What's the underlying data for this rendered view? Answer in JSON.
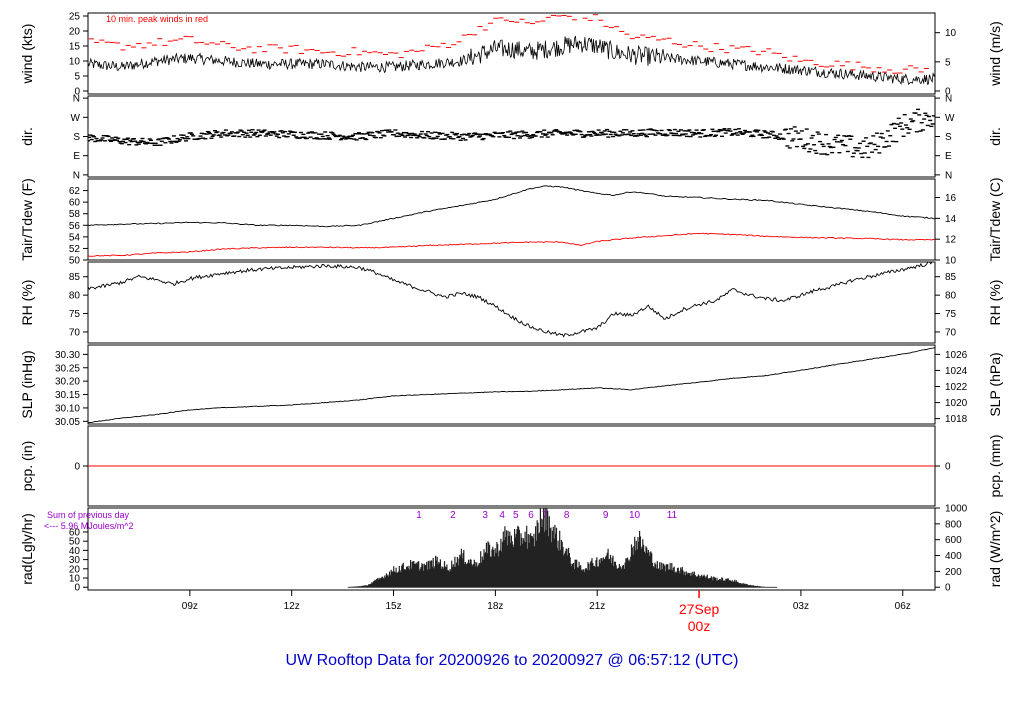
{
  "title": "UW Rooftop Data for 20200926  to  20200927 @ 06:57:12  (UTC)",
  "colors": {
    "title": "#0000cc",
    "peak": "#ff0000",
    "tdew": "#ff0000",
    "precip": "#ff0000",
    "rad_note": "#9900cc",
    "date_label": "#ff0000",
    "line": "#000000"
  },
  "x_axis": {
    "range_hours": [
      6.0,
      30.95
    ],
    "ticks": [
      {
        "hour": 9,
        "label": "09z"
      },
      {
        "hour": 12,
        "label": "12z"
      },
      {
        "hour": 15,
        "label": "15z"
      },
      {
        "hour": 18,
        "label": "18z"
      },
      {
        "hour": 21,
        "label": "21z"
      },
      {
        "hour": 27,
        "label": "03z"
      },
      {
        "hour": 30,
        "label": "06z"
      }
    ],
    "date_label": {
      "hour": 24,
      "date": "27Sep",
      "time": "00z"
    }
  },
  "chart_data": [
    {
      "type": "line",
      "name": "wind",
      "ylabel_left": "wind (kts)",
      "ylabel_right": "wind (m/s)",
      "ylim": [
        -1,
        26
      ],
      "left_ticks": [
        0,
        5,
        10,
        15,
        20,
        25
      ],
      "right_ticks": [
        {
          "v": 0,
          "label": "0"
        },
        {
          "v": 9.72,
          "label": "5"
        },
        {
          "v": 19.44,
          "label": "10"
        }
      ],
      "annotation": "10 min. peak winds in red",
      "x": [
        6,
        7,
        8,
        9,
        10,
        11,
        12,
        13,
        14,
        15,
        16,
        17,
        17.5,
        18,
        18.5,
        19,
        19.5,
        20,
        20.5,
        21,
        21.5,
        22,
        23,
        24,
        25,
        26,
        27,
        28,
        29,
        30,
        30.5,
        30.95
      ],
      "y": [
        9,
        8,
        10,
        11,
        10,
        9,
        9,
        9,
        8,
        8,
        9,
        10,
        12,
        14,
        14,
        13,
        14,
        15,
        16,
        15,
        13,
        12,
        11,
        10,
        9,
        8,
        7,
        6,
        5,
        4,
        4,
        4
      ],
      "peak_x": [
        6.2,
        7,
        8,
        9,
        10,
        11,
        12,
        13,
        14,
        15,
        16,
        17,
        17.5,
        18,
        18.5,
        19,
        19.5,
        20,
        20.5,
        21,
        21.5,
        22,
        23,
        24,
        25,
        26,
        27,
        28,
        29,
        30,
        30.6
      ],
      "peak_y": [
        16,
        15,
        16,
        17,
        15,
        14,
        14,
        13,
        13,
        12,
        14,
        17,
        21,
        23,
        24,
        22,
        24,
        25,
        25,
        24,
        21,
        18,
        17,
        15,
        14,
        13,
        10,
        9,
        8,
        7,
        7
      ]
    },
    {
      "type": "scatter",
      "name": "direction",
      "ylabel_left": "dir.",
      "ylabel_right": "dir.",
      "ylim": [
        -10,
        370
      ],
      "left_ticks": [
        {
          "v": 360,
          "label": "N"
        },
        {
          "v": 270,
          "label": "W"
        },
        {
          "v": 180,
          "label": "S"
        },
        {
          "v": 90,
          "label": "E"
        },
        {
          "v": 0,
          "label": "N"
        }
      ],
      "right_ticks": [
        {
          "v": 360,
          "label": "N"
        },
        {
          "v": 270,
          "label": "W"
        },
        {
          "v": 180,
          "label": "S"
        },
        {
          "v": 90,
          "label": "E"
        },
        {
          "v": 0,
          "label": "N"
        }
      ],
      "x": [
        6,
        7,
        8,
        9,
        10,
        11,
        12,
        13,
        14,
        15,
        16,
        17,
        18,
        19,
        20,
        21,
        22,
        23,
        24,
        25,
        26,
        27,
        28,
        29,
        30,
        30.95
      ],
      "y": [
        175,
        160,
        150,
        180,
        195,
        195,
        190,
        185,
        180,
        195,
        185,
        180,
        185,
        190,
        195,
        195,
        195,
        200,
        195,
        200,
        190,
        170,
        140,
        120,
        230,
        280
      ]
    },
    {
      "type": "line",
      "name": "temperature",
      "ylabel_left": "Tair/Tdew (F)",
      "ylabel_right": "Tair/Tdew (C)",
      "ylim": [
        50,
        64
      ],
      "left_ticks": [
        50,
        52,
        54,
        56,
        58,
        60,
        62
      ],
      "right_ticks": [
        {
          "v": 50,
          "label": "10"
        },
        {
          "v": 53.6,
          "label": "12"
        },
        {
          "v": 57.2,
          "label": "14"
        },
        {
          "v": 60.8,
          "label": "16"
        }
      ],
      "series": [
        {
          "name": "Tair",
          "x": [
            6,
            7,
            8,
            9,
            10,
            11,
            12,
            13,
            14,
            15,
            16,
            17,
            18,
            18.5,
            19,
            19.5,
            20,
            20.5,
            21,
            21.5,
            22,
            22.5,
            23,
            24,
            25,
            26,
            27,
            28,
            29,
            30,
            30.95
          ],
          "y": [
            56,
            56.2,
            56.3,
            56.5,
            56.4,
            56,
            56,
            55.8,
            56,
            57.2,
            58.4,
            59.4,
            60.5,
            61.4,
            62.3,
            62.8,
            62.6,
            62,
            61.5,
            61.2,
            61.8,
            61.5,
            61,
            60.8,
            60.5,
            60.3,
            59.6,
            59,
            58.4,
            57.6,
            57.2
          ]
        },
        {
          "name": "Tdew",
          "x": [
            6,
            7,
            8,
            9,
            10,
            11,
            12,
            13,
            14,
            15,
            16,
            17,
            18,
            19,
            20,
            20.5,
            21,
            22,
            23,
            24,
            25,
            26,
            27,
            28,
            29,
            30,
            30.95
          ],
          "y": [
            50.7,
            50.8,
            51.2,
            51.4,
            51.9,
            52.1,
            52.2,
            52.2,
            52.1,
            52.2,
            52.5,
            52.7,
            52.9,
            53.1,
            53.1,
            52.5,
            53.2,
            53.8,
            54.2,
            54.6,
            54.4,
            54.1,
            53.9,
            53.8,
            53.7,
            53.5,
            53.5
          ]
        }
      ]
    },
    {
      "type": "line",
      "name": "relative-humidity",
      "ylabel_left": "RH (%)",
      "ylabel_right": "RH (%)",
      "ylim": [
        67,
        89
      ],
      "left_ticks": [
        70,
        75,
        80,
        85
      ],
      "right_ticks": [
        {
          "v": 70,
          "label": "70"
        },
        {
          "v": 75,
          "label": "75"
        },
        {
          "v": 80,
          "label": "80"
        },
        {
          "v": 85,
          "label": "85"
        }
      ],
      "x": [
        6,
        6.5,
        7,
        7.5,
        8,
        8.5,
        9,
        10,
        11,
        12,
        13,
        14,
        14.5,
        15,
        15.5,
        16,
        16.5,
        17,
        17.5,
        18,
        18.5,
        19,
        19.5,
        20,
        20.5,
        21,
        21.5,
        22,
        22.5,
        23,
        23.5,
        24,
        24.5,
        25,
        25.5,
        26,
        26.5,
        27,
        27.5,
        28,
        28.5,
        29,
        29.5,
        30,
        30.5,
        30.95
      ],
      "y": [
        81.8,
        82.5,
        83.5,
        85,
        84.2,
        83,
        84.5,
        86,
        87,
        87.5,
        88,
        87.5,
        86,
        84,
        82.5,
        81,
        79.5,
        80.5,
        79.5,
        77,
        74,
        71.5,
        70,
        69,
        70,
        71,
        75,
        74.5,
        77,
        73.5,
        76,
        77.5,
        78.5,
        81.5,
        80,
        79,
        78.5,
        80,
        81.5,
        82.5,
        84,
        85,
        86,
        87,
        88,
        89
      ]
    },
    {
      "type": "line",
      "name": "sea-level-pressure",
      "ylabel_left": "SLP (inHg)",
      "ylabel_right": "SLP (hPa)",
      "ylim": [
        30.04,
        30.335
      ],
      "left_ticks": [
        {
          "v": 30.05,
          "label": "30.05"
        },
        {
          "v": 30.1,
          "label": "30.10"
        },
        {
          "v": 30.15,
          "label": "30.15"
        },
        {
          "v": 30.2,
          "label": "30.20"
        },
        {
          "v": 30.25,
          "label": "30.25"
        },
        {
          "v": 30.3,
          "label": "30.30"
        }
      ],
      "right_ticks": [
        {
          "v": 30.06,
          "label": "1018"
        },
        {
          "v": 30.12,
          "label": "1020"
        },
        {
          "v": 30.18,
          "label": "1022"
        },
        {
          "v": 30.24,
          "label": "1024"
        },
        {
          "v": 30.3,
          "label": "1026"
        }
      ],
      "x": [
        6,
        7,
        8,
        9,
        10,
        11,
        12,
        13,
        14,
        15,
        16,
        17,
        18,
        19,
        20,
        21,
        22,
        23,
        24,
        25,
        26,
        27,
        28,
        29,
        30,
        30.95
      ],
      "y": [
        30.045,
        30.062,
        30.075,
        30.093,
        30.101,
        30.106,
        30.111,
        30.12,
        30.13,
        30.145,
        30.15,
        30.155,
        30.16,
        30.162,
        30.168,
        30.175,
        30.168,
        30.183,
        30.196,
        30.211,
        30.221,
        30.241,
        30.261,
        30.281,
        30.301,
        30.325
      ]
    },
    {
      "type": "line",
      "name": "precipitation",
      "ylabel_left": "pcp. (in)",
      "ylabel_right": "pcp. (mm)",
      "ylim": [
        -1,
        1
      ],
      "left_ticks": [
        {
          "v": 0,
          "label": "0"
        }
      ],
      "right_ticks": [
        {
          "v": 0,
          "label": "0"
        }
      ],
      "x": [
        6,
        30.95
      ],
      "y": [
        0,
        0
      ]
    },
    {
      "type": "area",
      "name": "radiation",
      "ylabel_left": "rad(Lgly/hr)",
      "ylabel_right": "rad (W/m^2)",
      "ylim": [
        -3,
        86
      ],
      "left_ticks": [
        0,
        10,
        20,
        30,
        40,
        50,
        60
      ],
      "right_ticks": [
        {
          "v": 0,
          "label": "0"
        },
        {
          "v": 17.2,
          "label": "200"
        },
        {
          "v": 34.4,
          "label": "400"
        },
        {
          "v": 51.6,
          "label": "600"
        },
        {
          "v": 68.8,
          "label": "800"
        },
        {
          "v": 86,
          "label": "1000"
        }
      ],
      "note_lines": [
        "Sum of previous day",
        "<--- 5.96 MJoules/m^2"
      ],
      "hour_labels": [
        {
          "hour": 15.75,
          "label": "1"
        },
        {
          "hour": 16.75,
          "label": "2"
        },
        {
          "hour": 17.7,
          "label": "3"
        },
        {
          "hour": 18.2,
          "label": "4"
        },
        {
          "hour": 18.6,
          "label": "5"
        },
        {
          "hour": 19.05,
          "label": "6"
        },
        {
          "hour": 19.45,
          "label": "7"
        },
        {
          "hour": 20.1,
          "label": "8"
        },
        {
          "hour": 21.25,
          "label": "9"
        },
        {
          "hour": 22.1,
          "label": "10"
        },
        {
          "hour": 23.2,
          "label": "11"
        }
      ],
      "x": [
        13.65,
        14.2,
        14.6,
        15,
        15.5,
        16,
        16.3,
        16.6,
        17,
        17.4,
        17.8,
        18,
        18.3,
        18.6,
        18.9,
        19.1,
        19.3,
        19.5,
        19.7,
        20,
        20.3,
        20.6,
        21,
        21.3,
        21.6,
        21.9,
        22,
        22.2,
        22.5,
        22.8,
        23.2,
        23.6,
        24,
        24.5,
        25,
        25.3,
        25.6,
        26
      ],
      "y": [
        0,
        2,
        10,
        20,
        26,
        25,
        31,
        22,
        37,
        27,
        45,
        42,
        60,
        57,
        62,
        50,
        78,
        85,
        65,
        48,
        28,
        22,
        31,
        38,
        26,
        30,
        45,
        57,
        40,
        24,
        24,
        18,
        14,
        10,
        8,
        4,
        2,
        0
      ]
    }
  ]
}
